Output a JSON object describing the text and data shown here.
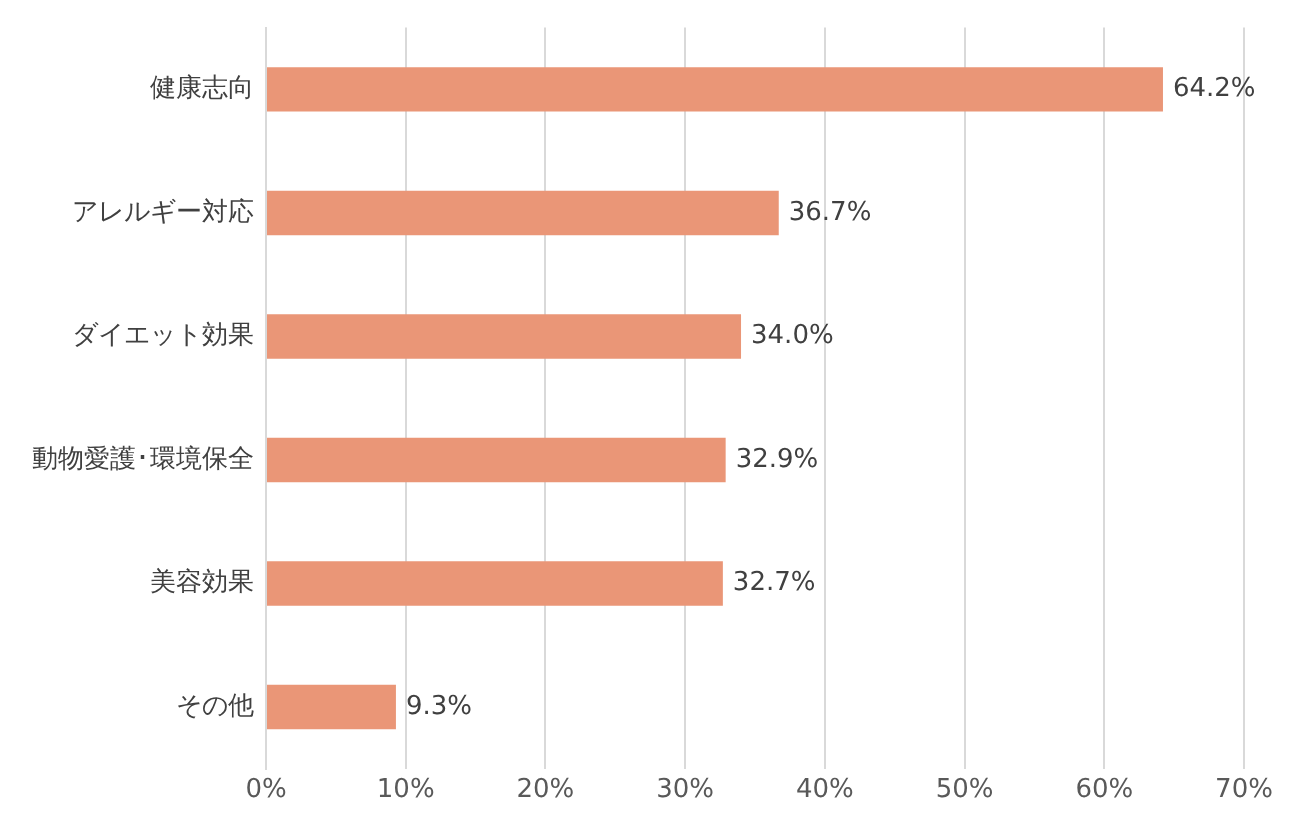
{
  "chart_data": {
    "type": "bar",
    "orientation": "horizontal",
    "categories": [
      "健康志向",
      "アレルギー対応",
      "ダイエット効果",
      "動物愛護･環境保全",
      "美容効果",
      "その他"
    ],
    "values": [
      64.2,
      36.7,
      34.0,
      32.9,
      32.7,
      9.3
    ],
    "value_labels": [
      "64.2%",
      "36.7%",
      "34.0%",
      "32.9%",
      "32.7%",
      "9.3%"
    ],
    "color": "#ea9677",
    "xlim": [
      0,
      70
    ],
    "xticks": [
      {
        "value": 0,
        "label": "0%"
      },
      {
        "value": 10,
        "label": "10%"
      },
      {
        "value": 20,
        "label": "20%"
      },
      {
        "value": 30,
        "label": "30%"
      },
      {
        "value": 40,
        "label": "40%"
      },
      {
        "value": 50,
        "label": "50%"
      },
      {
        "value": 60,
        "label": "60%"
      },
      {
        "value": 70,
        "label": "70%"
      }
    ],
    "grid": "x"
  }
}
